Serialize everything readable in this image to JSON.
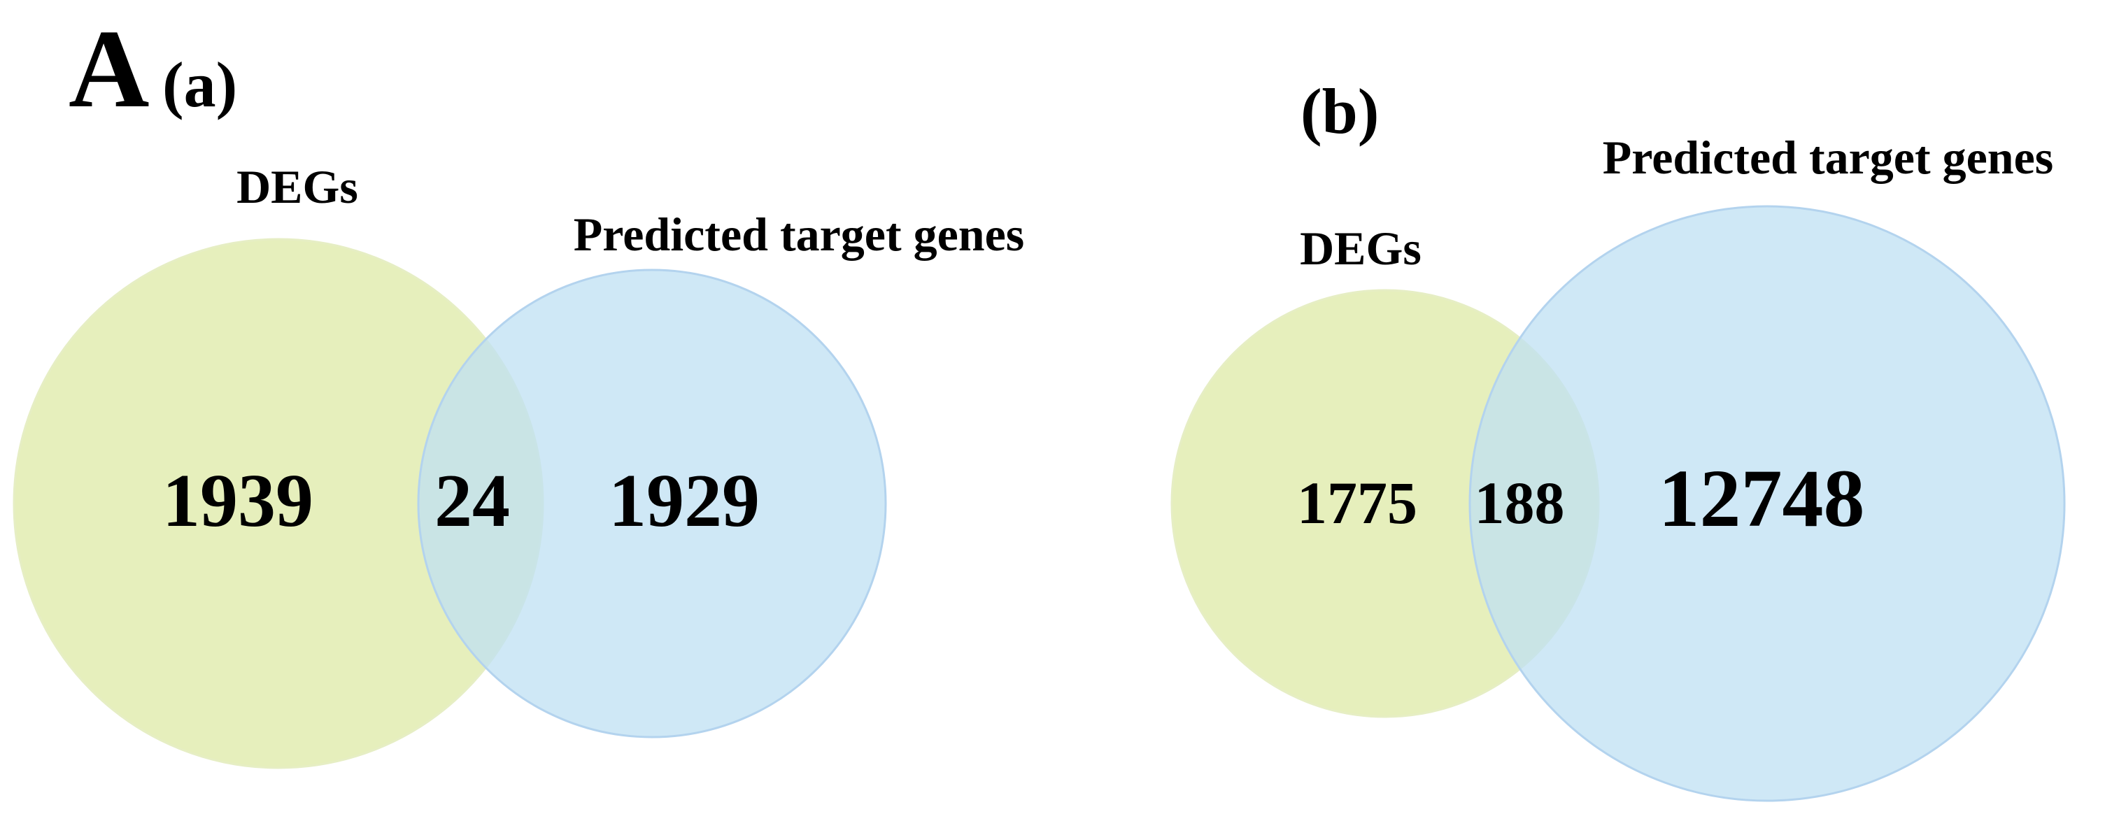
{
  "figure_label": "A",
  "colors": {
    "degs_fill": "#dde9a6",
    "degs_stroke": "#e6eec4",
    "targets_fill": "#bfe0f3",
    "targets_stroke": "#b3d3ee",
    "text": "#000000"
  },
  "panels": [
    {
      "label": "(a)",
      "sets": [
        {
          "name": "DEGs",
          "only_count": "1939"
        },
        {
          "name": "Predicted target genes",
          "only_count": "1929"
        }
      ],
      "overlap_count": "24"
    },
    {
      "label": "(b)",
      "sets": [
        {
          "name": "DEGs",
          "only_count": "1775"
        },
        {
          "name": "Predicted target genes",
          "only_count": "12748"
        }
      ],
      "overlap_count": "188"
    }
  ]
}
